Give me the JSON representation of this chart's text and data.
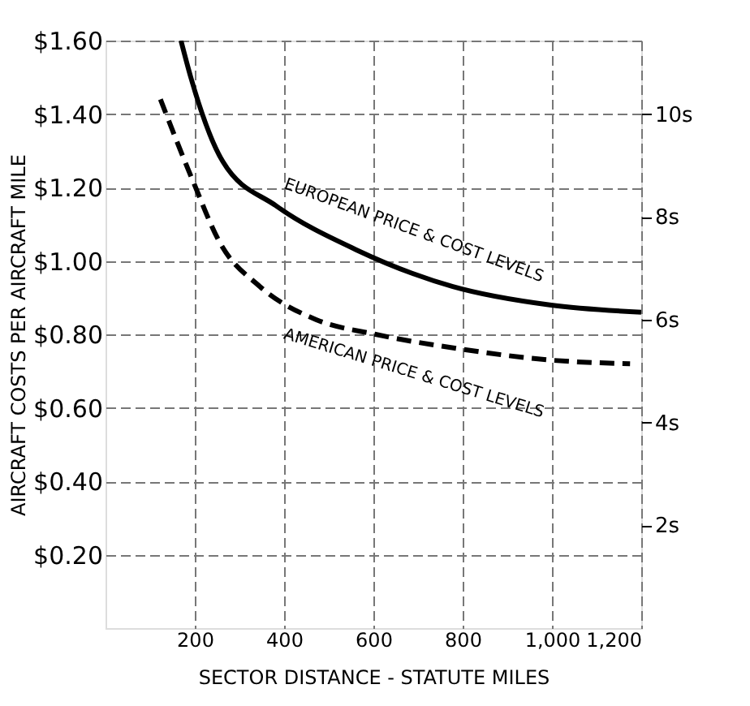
{
  "chart_data": {
    "type": "line",
    "xlabel": "SECTOR DISTANCE - STATUTE MILES",
    "ylabel": "AIRCRAFT COSTS PER AIRCRAFT MILE",
    "xlim": [
      0,
      1200
    ],
    "xticks": [
      200,
      400,
      600,
      800,
      {
        "value": 1000,
        "label": "1,000"
      },
      {
        "value": 1200,
        "label": "1,200"
      }
    ],
    "ylim": [
      0,
      1.6
    ],
    "yticks": [
      {
        "value": 0.2,
        "label": "$0.20"
      },
      {
        "value": 0.4,
        "label": "$0.40"
      },
      {
        "value": 0.6,
        "label": "$0.60"
      },
      {
        "value": 0.8,
        "label": "$0.80"
      },
      {
        "value": 1.0,
        "label": "$1.00"
      },
      {
        "value": 1.2,
        "label": "$1.20"
      },
      {
        "value": 1.4,
        "label": "$1.40"
      },
      {
        "value": 1.6,
        "label": "$1.60"
      }
    ],
    "y2lim": [
      0,
      11.43
    ],
    "y2ticks": [
      {
        "value": 2,
        "label": "2s"
      },
      {
        "value": 4,
        "label": "4s"
      },
      {
        "value": 6,
        "label": "6s"
      },
      {
        "value": 8,
        "label": "8s"
      },
      {
        "value": 10,
        "label": "10s"
      }
    ],
    "grid": true,
    "marker": "none",
    "series": [
      {
        "color": "#000000",
        "line_style": "solid",
        "x": [
          169,
          191,
          263,
          382,
          562,
          778,
          995,
          1200
        ],
        "values": [
          1.6,
          1.5,
          1.27,
          1.15,
          1.03,
          0.93,
          0.88,
          0.86
        ]
      },
      {
        "color": "#000000",
        "line_style": "dashed",
        "x": [
          123,
          195,
          256,
          346,
          472,
          605,
          796,
          995,
          1175
        ],
        "values": [
          1.44,
          1.22,
          1.05,
          0.93,
          0.84,
          0.8,
          0.76,
          0.73,
          0.72
        ]
      }
    ],
    "annotations": [
      "EUROPEAN PRICE & COST LEVELS",
      "AMERICAN PRICE & COST LEVELS"
    ]
  }
}
